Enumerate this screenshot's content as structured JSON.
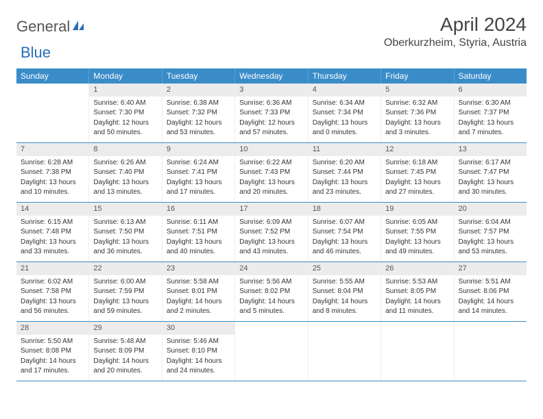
{
  "logo": {
    "text1": "General",
    "text2": "Blue"
  },
  "title": "April 2024",
  "location": "Oberkurzheim, Styria, Austria",
  "weekdays": [
    "Sunday",
    "Monday",
    "Tuesday",
    "Wednesday",
    "Thursday",
    "Friday",
    "Saturday"
  ],
  "colors": {
    "header_bg": "#3a8cc9",
    "header_text": "#ffffff",
    "daynum_bg": "#ececec",
    "border": "#3a8cc9"
  },
  "weeks": [
    [
      {
        "day": "",
        "sunrise": "",
        "sunset": "",
        "daylight1": "",
        "daylight2": ""
      },
      {
        "day": "1",
        "sunrise": "Sunrise: 6:40 AM",
        "sunset": "Sunset: 7:30 PM",
        "daylight1": "Daylight: 12 hours",
        "daylight2": "and 50 minutes."
      },
      {
        "day": "2",
        "sunrise": "Sunrise: 6:38 AM",
        "sunset": "Sunset: 7:32 PM",
        "daylight1": "Daylight: 12 hours",
        "daylight2": "and 53 minutes."
      },
      {
        "day": "3",
        "sunrise": "Sunrise: 6:36 AM",
        "sunset": "Sunset: 7:33 PM",
        "daylight1": "Daylight: 12 hours",
        "daylight2": "and 57 minutes."
      },
      {
        "day": "4",
        "sunrise": "Sunrise: 6:34 AM",
        "sunset": "Sunset: 7:34 PM",
        "daylight1": "Daylight: 13 hours",
        "daylight2": "and 0 minutes."
      },
      {
        "day": "5",
        "sunrise": "Sunrise: 6:32 AM",
        "sunset": "Sunset: 7:36 PM",
        "daylight1": "Daylight: 13 hours",
        "daylight2": "and 3 minutes."
      },
      {
        "day": "6",
        "sunrise": "Sunrise: 6:30 AM",
        "sunset": "Sunset: 7:37 PM",
        "daylight1": "Daylight: 13 hours",
        "daylight2": "and 7 minutes."
      }
    ],
    [
      {
        "day": "7",
        "sunrise": "Sunrise: 6:28 AM",
        "sunset": "Sunset: 7:38 PM",
        "daylight1": "Daylight: 13 hours",
        "daylight2": "and 10 minutes."
      },
      {
        "day": "8",
        "sunrise": "Sunrise: 6:26 AM",
        "sunset": "Sunset: 7:40 PM",
        "daylight1": "Daylight: 13 hours",
        "daylight2": "and 13 minutes."
      },
      {
        "day": "9",
        "sunrise": "Sunrise: 6:24 AM",
        "sunset": "Sunset: 7:41 PM",
        "daylight1": "Daylight: 13 hours",
        "daylight2": "and 17 minutes."
      },
      {
        "day": "10",
        "sunrise": "Sunrise: 6:22 AM",
        "sunset": "Sunset: 7:43 PM",
        "daylight1": "Daylight: 13 hours",
        "daylight2": "and 20 minutes."
      },
      {
        "day": "11",
        "sunrise": "Sunrise: 6:20 AM",
        "sunset": "Sunset: 7:44 PM",
        "daylight1": "Daylight: 13 hours",
        "daylight2": "and 23 minutes."
      },
      {
        "day": "12",
        "sunrise": "Sunrise: 6:18 AM",
        "sunset": "Sunset: 7:45 PM",
        "daylight1": "Daylight: 13 hours",
        "daylight2": "and 27 minutes."
      },
      {
        "day": "13",
        "sunrise": "Sunrise: 6:17 AM",
        "sunset": "Sunset: 7:47 PM",
        "daylight1": "Daylight: 13 hours",
        "daylight2": "and 30 minutes."
      }
    ],
    [
      {
        "day": "14",
        "sunrise": "Sunrise: 6:15 AM",
        "sunset": "Sunset: 7:48 PM",
        "daylight1": "Daylight: 13 hours",
        "daylight2": "and 33 minutes."
      },
      {
        "day": "15",
        "sunrise": "Sunrise: 6:13 AM",
        "sunset": "Sunset: 7:50 PM",
        "daylight1": "Daylight: 13 hours",
        "daylight2": "and 36 minutes."
      },
      {
        "day": "16",
        "sunrise": "Sunrise: 6:11 AM",
        "sunset": "Sunset: 7:51 PM",
        "daylight1": "Daylight: 13 hours",
        "daylight2": "and 40 minutes."
      },
      {
        "day": "17",
        "sunrise": "Sunrise: 6:09 AM",
        "sunset": "Sunset: 7:52 PM",
        "daylight1": "Daylight: 13 hours",
        "daylight2": "and 43 minutes."
      },
      {
        "day": "18",
        "sunrise": "Sunrise: 6:07 AM",
        "sunset": "Sunset: 7:54 PM",
        "daylight1": "Daylight: 13 hours",
        "daylight2": "and 46 minutes."
      },
      {
        "day": "19",
        "sunrise": "Sunrise: 6:05 AM",
        "sunset": "Sunset: 7:55 PM",
        "daylight1": "Daylight: 13 hours",
        "daylight2": "and 49 minutes."
      },
      {
        "day": "20",
        "sunrise": "Sunrise: 6:04 AM",
        "sunset": "Sunset: 7:57 PM",
        "daylight1": "Daylight: 13 hours",
        "daylight2": "and 53 minutes."
      }
    ],
    [
      {
        "day": "21",
        "sunrise": "Sunrise: 6:02 AM",
        "sunset": "Sunset: 7:58 PM",
        "daylight1": "Daylight: 13 hours",
        "daylight2": "and 56 minutes."
      },
      {
        "day": "22",
        "sunrise": "Sunrise: 6:00 AM",
        "sunset": "Sunset: 7:59 PM",
        "daylight1": "Daylight: 13 hours",
        "daylight2": "and 59 minutes."
      },
      {
        "day": "23",
        "sunrise": "Sunrise: 5:58 AM",
        "sunset": "Sunset: 8:01 PM",
        "daylight1": "Daylight: 14 hours",
        "daylight2": "and 2 minutes."
      },
      {
        "day": "24",
        "sunrise": "Sunrise: 5:56 AM",
        "sunset": "Sunset: 8:02 PM",
        "daylight1": "Daylight: 14 hours",
        "daylight2": "and 5 minutes."
      },
      {
        "day": "25",
        "sunrise": "Sunrise: 5:55 AM",
        "sunset": "Sunset: 8:04 PM",
        "daylight1": "Daylight: 14 hours",
        "daylight2": "and 8 minutes."
      },
      {
        "day": "26",
        "sunrise": "Sunrise: 5:53 AM",
        "sunset": "Sunset: 8:05 PM",
        "daylight1": "Daylight: 14 hours",
        "daylight2": "and 11 minutes."
      },
      {
        "day": "27",
        "sunrise": "Sunrise: 5:51 AM",
        "sunset": "Sunset: 8:06 PM",
        "daylight1": "Daylight: 14 hours",
        "daylight2": "and 14 minutes."
      }
    ],
    [
      {
        "day": "28",
        "sunrise": "Sunrise: 5:50 AM",
        "sunset": "Sunset: 8:08 PM",
        "daylight1": "Daylight: 14 hours",
        "daylight2": "and 17 minutes."
      },
      {
        "day": "29",
        "sunrise": "Sunrise: 5:48 AM",
        "sunset": "Sunset: 8:09 PM",
        "daylight1": "Daylight: 14 hours",
        "daylight2": "and 20 minutes."
      },
      {
        "day": "30",
        "sunrise": "Sunrise: 5:46 AM",
        "sunset": "Sunset: 8:10 PM",
        "daylight1": "Daylight: 14 hours",
        "daylight2": "and 24 minutes."
      },
      {
        "day": "",
        "sunrise": "",
        "sunset": "",
        "daylight1": "",
        "daylight2": ""
      },
      {
        "day": "",
        "sunrise": "",
        "sunset": "",
        "daylight1": "",
        "daylight2": ""
      },
      {
        "day": "",
        "sunrise": "",
        "sunset": "",
        "daylight1": "",
        "daylight2": ""
      },
      {
        "day": "",
        "sunrise": "",
        "sunset": "",
        "daylight1": "",
        "daylight2": ""
      }
    ]
  ]
}
